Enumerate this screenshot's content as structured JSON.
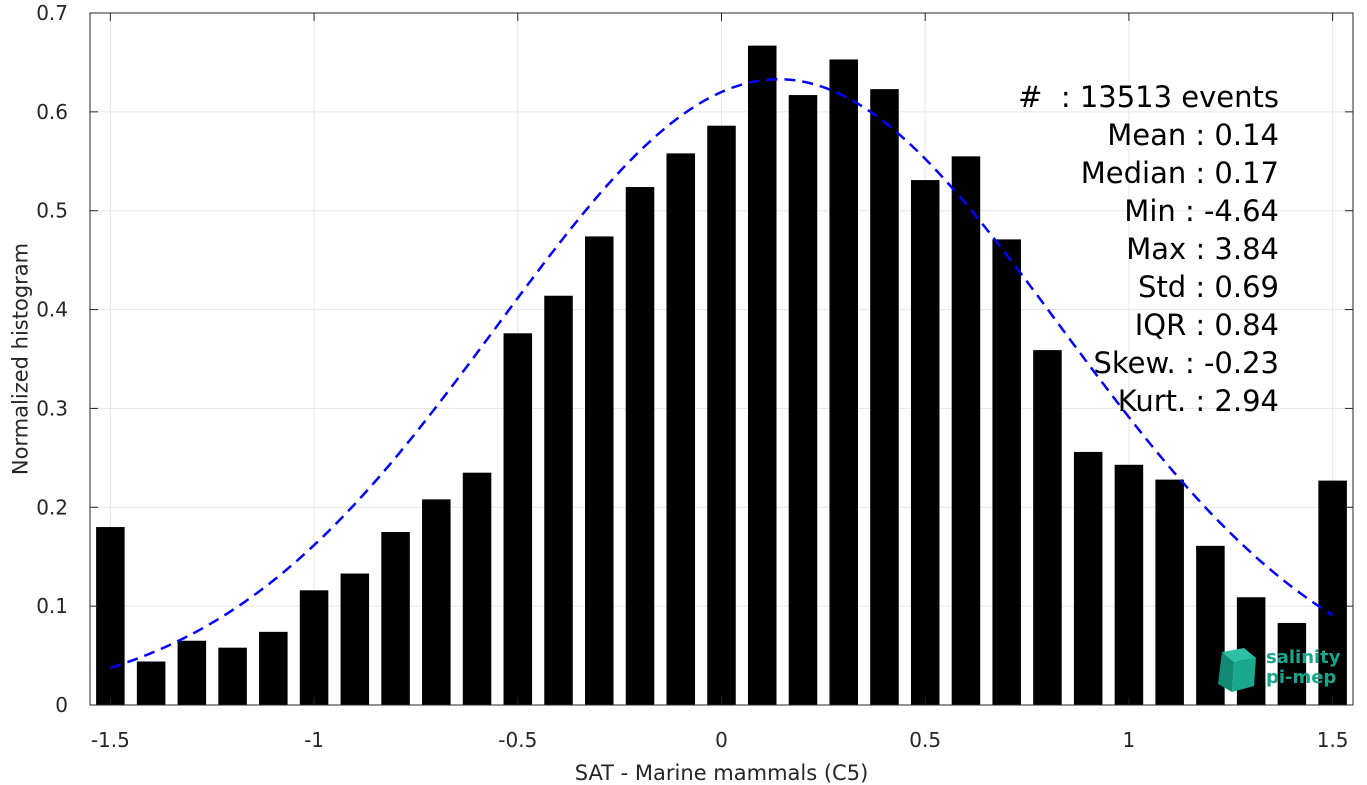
{
  "chart_data": {
    "type": "bar",
    "xlabel": "SAT - Marine mammals (C5)",
    "ylabel": "Normalized histogram",
    "xlim": [
      -1.55,
      1.55
    ],
    "ylim": [
      0,
      0.7
    ],
    "xticks": [
      -1.5,
      -1,
      -0.5,
      0,
      0.5,
      1,
      1.5
    ],
    "xtick_labels": [
      "-1.5",
      "-1",
      "-0.5",
      "0",
      "0.5",
      "1",
      "1.5"
    ],
    "yticks": [
      0,
      0.1,
      0.2,
      0.3,
      0.4,
      0.5,
      0.6,
      0.7
    ],
    "ytick_labels": [
      "0",
      "0.1",
      "0.2",
      "0.3",
      "0.4",
      "0.5",
      "0.6",
      "0.7"
    ],
    "grid": true,
    "bar_color": "#000000",
    "bins": [
      -1.5,
      -1.4,
      -1.3,
      -1.2,
      -1.1,
      -1.0,
      -0.9,
      -0.8,
      -0.7,
      -0.6,
      -0.5,
      -0.4,
      -0.3,
      -0.2,
      -0.1,
      0.0,
      0.1,
      0.2,
      0.3,
      0.4,
      0.5,
      0.6,
      0.7,
      0.8,
      0.9,
      1.0,
      1.1,
      1.2,
      1.3,
      1.4,
      1.5
    ],
    "values": [
      0.18,
      0.044,
      0.065,
      0.058,
      0.074,
      0.116,
      0.133,
      0.175,
      0.208,
      0.235,
      0.376,
      0.414,
      0.474,
      0.524,
      0.558,
      0.586,
      0.667,
      0.617,
      0.653,
      0.623,
      0.531,
      0.555,
      0.471,
      0.359,
      0.256,
      0.243,
      0.228,
      0.161,
      0.109,
      0.083,
      0.227
    ],
    "fit_curve": {
      "type": "gaussian",
      "mean": 0.14,
      "std": 0.69,
      "peak": 0.633,
      "color": "#0000ff",
      "style": "dashed"
    }
  },
  "stats": [
    "#  : 13513 events",
    "Mean : 0.14",
    "Median : 0.17",
    "Min : -4.64",
    "Max : 3.84",
    "Std : 0.69",
    "IQR : 0.84",
    "Skew. : -0.23",
    "Kurt. : 2.94"
  ],
  "logo": {
    "line1": "salinity",
    "line2": "pi-mep",
    "color": "#17a58c"
  }
}
